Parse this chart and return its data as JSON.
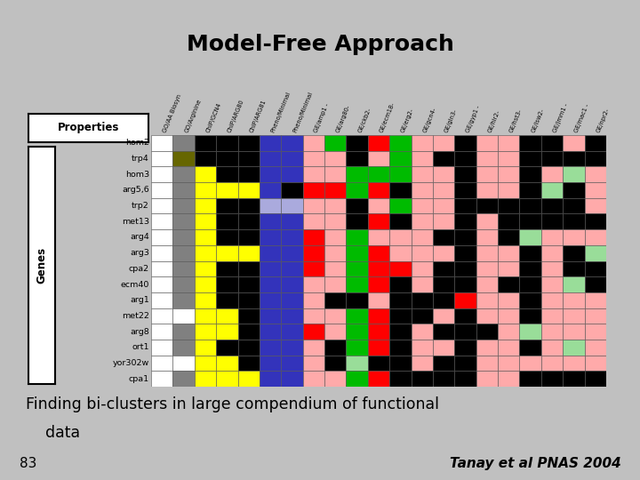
{
  "title": "Model-Free Approach",
  "subtitle_line1": "Finding bi-clusters in large compendium of functional",
  "subtitle_line2": "    data",
  "citation": "Tanay et al PNAS 2004",
  "slide_number": "83",
  "background_color": "#c0c0c0",
  "title_color": "#000000",
  "col_labels": [
    "GO/AA Biosyn",
    "GO/Arginine",
    "ChIP/GCN4",
    "ChIP/ARG80",
    "ChIP/ARG81",
    "Pheno/Minimal",
    "Pheno/Minimal",
    "GE/amp1 -",
    "GE/arg80-",
    "GE/ckb2-",
    "GE/ecm18-",
    "GE/erg2-",
    "GE/gcn4-",
    "GE/gln3-",
    "GE/gyp1 -",
    "GE/hir2-",
    "GE/hst3-",
    "GE/isw2-",
    "GE/jmm1 -",
    "GE/mac1 -",
    "GE/npr2-"
  ],
  "row_labels": [
    "hom2",
    "trp4",
    "hom3",
    "arg5,6",
    "trp2",
    "met13",
    "arg4",
    "arg3",
    "cpa2",
    "ecm40",
    "arg1",
    "met22",
    "arg8",
    "ort1",
    "yor302w",
    "cpa1"
  ],
  "heatmap": [
    [
      "#ffffff",
      "#808080",
      "#000000",
      "#000000",
      "#000000",
      "#3333bb",
      "#3333bb",
      "#ffaaaa",
      "#00bb00",
      "#000000",
      "#ff0000",
      "#00bb00",
      "#ffaaaa",
      "#ffaaaa",
      "#000000",
      "#ffaaaa",
      "#ffaaaa",
      "#000000",
      "#000000",
      "#ffaaaa",
      "#000000"
    ],
    [
      "#ffffff",
      "#666600",
      "#000000",
      "#000000",
      "#000000",
      "#3333bb",
      "#3333bb",
      "#ffaaaa",
      "#ffaaaa",
      "#000000",
      "#ffaaaa",
      "#00bb00",
      "#ffaaaa",
      "#000000",
      "#000000",
      "#ffaaaa",
      "#ffaaaa",
      "#000000",
      "#000000",
      "#000000",
      "#000000"
    ],
    [
      "#ffffff",
      "#808080",
      "#ffff00",
      "#000000",
      "#000000",
      "#3333bb",
      "#3333bb",
      "#ffaaaa",
      "#ffaaaa",
      "#00bb00",
      "#00bb00",
      "#00bb00",
      "#ffaaaa",
      "#ffaaaa",
      "#000000",
      "#ffaaaa",
      "#ffaaaa",
      "#000000",
      "#ffaaaa",
      "#99dd99",
      "#ffaaaa"
    ],
    [
      "#ffffff",
      "#808080",
      "#ffff00",
      "#ffff00",
      "#ffff00",
      "#3333bb",
      "#000000",
      "#ff0000",
      "#ff0000",
      "#00bb00",
      "#ff0000",
      "#000000",
      "#ffaaaa",
      "#ffaaaa",
      "#000000",
      "#ffaaaa",
      "#ffaaaa",
      "#000000",
      "#99dd99",
      "#000000",
      "#ffaaaa"
    ],
    [
      "#ffffff",
      "#808080",
      "#ffff00",
      "#000000",
      "#000000",
      "#aaaadd",
      "#aaaadd",
      "#ffaaaa",
      "#ffaaaa",
      "#000000",
      "#ffaaaa",
      "#00bb00",
      "#ffaaaa",
      "#ffaaaa",
      "#000000",
      "#000000",
      "#000000",
      "#000000",
      "#000000",
      "#000000",
      "#ffaaaa"
    ],
    [
      "#ffffff",
      "#808080",
      "#ffff00",
      "#000000",
      "#000000",
      "#3333bb",
      "#3333bb",
      "#ffaaaa",
      "#ffaaaa",
      "#000000",
      "#ff0000",
      "#000000",
      "#ffaaaa",
      "#ffaaaa",
      "#000000",
      "#ffaaaa",
      "#000000",
      "#000000",
      "#000000",
      "#000000",
      "#000000"
    ],
    [
      "#ffffff",
      "#808080",
      "#ffff00",
      "#000000",
      "#000000",
      "#3333bb",
      "#3333bb",
      "#ff0000",
      "#ffaaaa",
      "#00bb00",
      "#ffaaaa",
      "#ffaaaa",
      "#ffaaaa",
      "#000000",
      "#000000",
      "#ffaaaa",
      "#000000",
      "#99dd99",
      "#ffaaaa",
      "#ffaaaa",
      "#ffaaaa"
    ],
    [
      "#ffffff",
      "#808080",
      "#ffff00",
      "#ffff00",
      "#ffff00",
      "#3333bb",
      "#3333bb",
      "#ff0000",
      "#ffaaaa",
      "#00bb00",
      "#ff0000",
      "#ffaaaa",
      "#ffaaaa",
      "#ffaaaa",
      "#000000",
      "#ffaaaa",
      "#ffaaaa",
      "#000000",
      "#ffaaaa",
      "#000000",
      "#99dd99"
    ],
    [
      "#ffffff",
      "#808080",
      "#ffff00",
      "#000000",
      "#000000",
      "#3333bb",
      "#3333bb",
      "#ff0000",
      "#ffaaaa",
      "#00bb00",
      "#ff0000",
      "#ff0000",
      "#ffaaaa",
      "#000000",
      "#000000",
      "#ffaaaa",
      "#ffaaaa",
      "#000000",
      "#ffaaaa",
      "#000000",
      "#000000"
    ],
    [
      "#ffffff",
      "#808080",
      "#ffff00",
      "#000000",
      "#000000",
      "#3333bb",
      "#3333bb",
      "#ffaaaa",
      "#ffaaaa",
      "#00bb00",
      "#ff0000",
      "#000000",
      "#ffaaaa",
      "#000000",
      "#000000",
      "#ffaaaa",
      "#000000",
      "#000000",
      "#ffaaaa",
      "#99dd99",
      "#000000"
    ],
    [
      "#ffffff",
      "#808080",
      "#ffff00",
      "#000000",
      "#000000",
      "#3333bb",
      "#3333bb",
      "#ffaaaa",
      "#000000",
      "#000000",
      "#ffaaaa",
      "#000000",
      "#000000",
      "#000000",
      "#ff0000",
      "#ffaaaa",
      "#ffaaaa",
      "#000000",
      "#ffaaaa",
      "#ffaaaa",
      "#ffaaaa"
    ],
    [
      "#ffffff",
      "#ffffff",
      "#ffff00",
      "#ffff00",
      "#000000",
      "#3333bb",
      "#3333bb",
      "#ffaaaa",
      "#ffaaaa",
      "#00bb00",
      "#ff0000",
      "#000000",
      "#000000",
      "#ffaaaa",
      "#000000",
      "#ffaaaa",
      "#ffaaaa",
      "#000000",
      "#ffaaaa",
      "#ffaaaa",
      "#ffaaaa"
    ],
    [
      "#ffffff",
      "#808080",
      "#ffff00",
      "#ffff00",
      "#000000",
      "#3333bb",
      "#3333bb",
      "#ff0000",
      "#ffaaaa",
      "#00bb00",
      "#ff0000",
      "#000000",
      "#ffaaaa",
      "#000000",
      "#000000",
      "#000000",
      "#ffaaaa",
      "#99dd99",
      "#ffaaaa",
      "#ffaaaa",
      "#ffaaaa"
    ],
    [
      "#ffffff",
      "#808080",
      "#ffff00",
      "#000000",
      "#000000",
      "#3333bb",
      "#3333bb",
      "#ffaaaa",
      "#000000",
      "#00bb00",
      "#ff0000",
      "#000000",
      "#ffaaaa",
      "#ffaaaa",
      "#000000",
      "#ffaaaa",
      "#ffaaaa",
      "#000000",
      "#ffaaaa",
      "#99dd99",
      "#ffaaaa"
    ],
    [
      "#ffffff",
      "#ffffff",
      "#ffff00",
      "#ffff00",
      "#000000",
      "#3333bb",
      "#3333bb",
      "#ffaaaa",
      "#000000",
      "#99dd99",
      "#000000",
      "#000000",
      "#ffaaaa",
      "#000000",
      "#000000",
      "#ffaaaa",
      "#ffaaaa",
      "#ffaaaa",
      "#ffaaaa",
      "#ffaaaa",
      "#ffaaaa"
    ],
    [
      "#ffffff",
      "#808080",
      "#ffff00",
      "#ffff00",
      "#ffff00",
      "#3333bb",
      "#3333bb",
      "#ffaaaa",
      "#ffaaaa",
      "#00bb00",
      "#ff0000",
      "#000000",
      "#000000",
      "#000000",
      "#000000",
      "#ffaaaa",
      "#ffaaaa",
      "#000000",
      "#000000",
      "#000000",
      "#000000"
    ]
  ],
  "figsize": [
    7.2,
    5.4
  ],
  "dpi": 100
}
